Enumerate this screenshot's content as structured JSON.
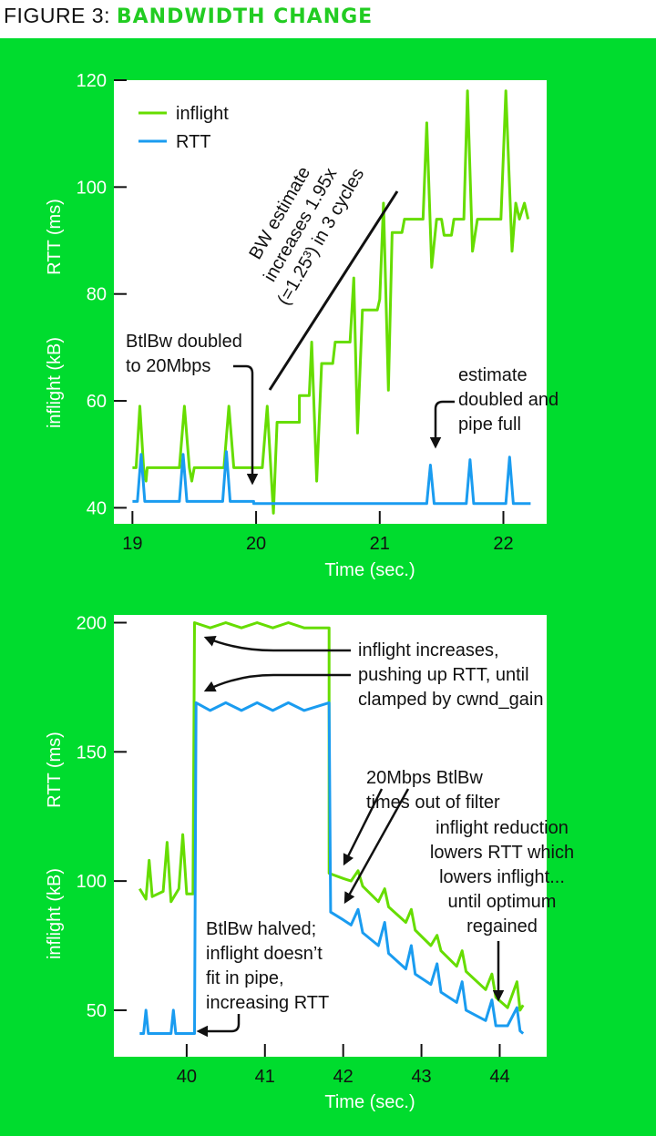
{
  "figure_label": "FIGURE 3:",
  "figure_title": "BANDWIDTH CHANGE",
  "colors": {
    "background": "#00dc2e",
    "inflight": "#66dd00",
    "rtt": "#1a9cf0"
  },
  "chart_data": [
    {
      "type": "line",
      "xlabel": "Time (sec.)",
      "ylabel_top": "RTT (ms)",
      "ylabel_bottom": "inflight (kB)",
      "xlim": [
        18.85,
        22.35
      ],
      "ylim": [
        37,
        120
      ],
      "xticks": [
        "19",
        "20",
        "21",
        "22"
      ],
      "yticks": [
        "40",
        "60",
        "80",
        "100",
        "120"
      ],
      "legend": {
        "position": "top-left",
        "entries": [
          "inflight",
          "RTT"
        ]
      },
      "annotations": {
        "bw_estimate": [
          "BW estimate",
          "increases 1.95x",
          "(=1.25³) in 3 cycles"
        ],
        "btlbw_doubled": [
          "BtlBw doubled",
          "to 20Mbps"
        ],
        "estimate_doubled": [
          "estimate",
          "doubled and",
          "pipe full"
        ]
      },
      "series": [
        {
          "name": "inflight",
          "points": [
            [
              19,
              47.5
            ],
            [
              19.03,
              47.5
            ],
            [
              19.06,
              59
            ],
            [
              19.09,
              47.5
            ],
            [
              19.11,
              45
            ],
            [
              19.12,
              47.5
            ],
            [
              19.38,
              47.5
            ],
            [
              19.42,
              59
            ],
            [
              19.46,
              47.5
            ],
            [
              19.48,
              45
            ],
            [
              19.5,
              47.5
            ],
            [
              19.74,
              47.5
            ],
            [
              19.78,
              59
            ],
            [
              19.82,
              47.5
            ],
            [
              20.05,
              47.5
            ],
            [
              20.09,
              59
            ],
            [
              20.14,
              39
            ],
            [
              20.17,
              56
            ],
            [
              20.35,
              56
            ],
            [
              20.35,
              61
            ],
            [
              20.43,
              61
            ],
            [
              20.45,
              71
            ],
            [
              20.49,
              45
            ],
            [
              20.53,
              67
            ],
            [
              20.62,
              67
            ],
            [
              20.64,
              71
            ],
            [
              20.76,
              71
            ],
            [
              20.79,
              83
            ],
            [
              20.82,
              54
            ],
            [
              20.86,
              77
            ],
            [
              20.98,
              77
            ],
            [
              21.0,
              79
            ],
            [
              21.03,
              97
            ],
            [
              21.07,
              62
            ],
            [
              21.1,
              91.5
            ],
            [
              21.18,
              91.5
            ],
            [
              21.2,
              94
            ],
            [
              21.35,
              94
            ],
            [
              21.38,
              112
            ],
            [
              21.42,
              85
            ],
            [
              21.46,
              94
            ],
            [
              21.5,
              94
            ],
            [
              21.52,
              91
            ],
            [
              21.58,
              91
            ],
            [
              21.6,
              94
            ],
            [
              21.68,
              94
            ],
            [
              21.71,
              118
            ],
            [
              21.75,
              88
            ],
            [
              21.79,
              94
            ],
            [
              21.98,
              94
            ],
            [
              22.02,
              118
            ],
            [
              22.07,
              88
            ],
            [
              22.1,
              97
            ],
            [
              22.13,
              94
            ],
            [
              22.17,
              97
            ],
            [
              22.2,
              94
            ]
          ]
        },
        {
          "name": "RTT",
          "points": [
            [
              19,
              41.2
            ],
            [
              19.04,
              41.2
            ],
            [
              19.07,
              50
            ],
            [
              19.1,
              41.2
            ],
            [
              19.38,
              41.2
            ],
            [
              19.41,
              50
            ],
            [
              19.44,
              41.2
            ],
            [
              19.73,
              41.2
            ],
            [
              19.76,
              50.5
            ],
            [
              19.79,
              41.2
            ],
            [
              19.98,
              41.2
            ],
            [
              19.98,
              40.8
            ],
            [
              21.38,
              40.8
            ],
            [
              21.41,
              48
            ],
            [
              21.44,
              40.8
            ],
            [
              21.7,
              40.8
            ],
            [
              21.73,
              49
            ],
            [
              21.76,
              40.8
            ],
            [
              22.02,
              40.8
            ],
            [
              22.05,
              49.5
            ],
            [
              22.08,
              40.8
            ],
            [
              22.22,
              40.8
            ]
          ]
        }
      ]
    },
    {
      "type": "line",
      "xlabel": "Time (sec.)",
      "ylabel_top": "RTT (ms)",
      "ylabel_bottom": "inflight (kB)",
      "xlim": [
        39.07,
        44.6
      ],
      "ylim": [
        32,
        203
      ],
      "xticks": [
        "40",
        "41",
        "42",
        "43",
        "44"
      ],
      "yticks": [
        "50",
        "100",
        "150",
        "200"
      ],
      "annotations": {
        "inflight_increases": [
          "inflight increases,",
          "pushing up RTT, until",
          "clamped by cwnd_gain"
        ],
        "btlbw_timeout": [
          "20Mbps BtlBw",
          "times out of filter"
        ],
        "inflight_reduction": [
          "inflight reduction",
          "lowers RTT which",
          "lowers inflight...",
          "until optimum",
          "regained"
        ],
        "btlbw_halved": [
          "BtlBw halved;",
          "inflight doesn’t",
          "fit in pipe,",
          "increasing RTT"
        ]
      },
      "series": [
        {
          "name": "inflight",
          "points": [
            [
              39.4,
              97
            ],
            [
              39.48,
              93
            ],
            [
              39.52,
              108
            ],
            [
              39.56,
              94
            ],
            [
              39.7,
              96
            ],
            [
              39.75,
              115
            ],
            [
              39.8,
              92
            ],
            [
              39.9,
              97
            ],
            [
              39.95,
              118
            ],
            [
              40,
              95
            ],
            [
              40.08,
              95
            ],
            [
              40.1,
              200
            ],
            [
              40.3,
              198
            ],
            [
              40.5,
              200
            ],
            [
              40.7,
              198
            ],
            [
              40.9,
              200
            ],
            [
              41.1,
              198
            ],
            [
              41.3,
              200
            ],
            [
              41.5,
              198
            ],
            [
              41.82,
              198
            ],
            [
              41.82,
              103
            ],
            [
              42.0,
              101
            ],
            [
              42.1,
              100
            ],
            [
              42.19,
              104
            ],
            [
              42.25,
              98
            ],
            [
              42.45,
              92
            ],
            [
              42.53,
              97
            ],
            [
              42.58,
              90
            ],
            [
              42.8,
              84
            ],
            [
              42.87,
              89
            ],
            [
              42.92,
              81
            ],
            [
              43.12,
              75
            ],
            [
              43.2,
              79
            ],
            [
              43.25,
              73
            ],
            [
              43.45,
              67
            ],
            [
              43.52,
              73
            ],
            [
              43.57,
              65
            ],
            [
              43.82,
              58
            ],
            [
              43.9,
              64
            ],
            [
              43.95,
              55
            ],
            [
              44.1,
              51
            ],
            [
              44.22,
              61
            ],
            [
              44.26,
              50
            ],
            [
              44.3,
              52
            ]
          ]
        },
        {
          "name": "RTT",
          "points": [
            [
              39.4,
              41
            ],
            [
              39.45,
              41
            ],
            [
              39.48,
              50
            ],
            [
              39.51,
              41
            ],
            [
              39.8,
              41
            ],
            [
              39.83,
              50
            ],
            [
              39.86,
              41
            ],
            [
              40.1,
              41
            ],
            [
              40.12,
              169
            ],
            [
              40.3,
              166
            ],
            [
              40.5,
              169
            ],
            [
              40.7,
              166
            ],
            [
              40.9,
              169
            ],
            [
              41.1,
              166
            ],
            [
              41.3,
              169
            ],
            [
              41.5,
              166
            ],
            [
              41.82,
              169
            ],
            [
              41.84,
              88
            ],
            [
              42.0,
              85
            ],
            [
              42.1,
              83
            ],
            [
              42.19,
              89
            ],
            [
              42.25,
              80
            ],
            [
              42.45,
              75
            ],
            [
              42.53,
              84
            ],
            [
              42.58,
              72
            ],
            [
              42.8,
              66
            ],
            [
              42.87,
              75
            ],
            [
              42.92,
              64
            ],
            [
              43.12,
              60
            ],
            [
              43.2,
              68
            ],
            [
              43.25,
              57
            ],
            [
              43.45,
              53
            ],
            [
              43.52,
              61
            ],
            [
              43.57,
              50
            ],
            [
              43.82,
              46
            ],
            [
              43.9,
              54
            ],
            [
              43.95,
              44
            ],
            [
              44.1,
              44
            ],
            [
              44.22,
              51
            ],
            [
              44.26,
              42
            ],
            [
              44.3,
              41
            ]
          ]
        }
      ]
    }
  ]
}
